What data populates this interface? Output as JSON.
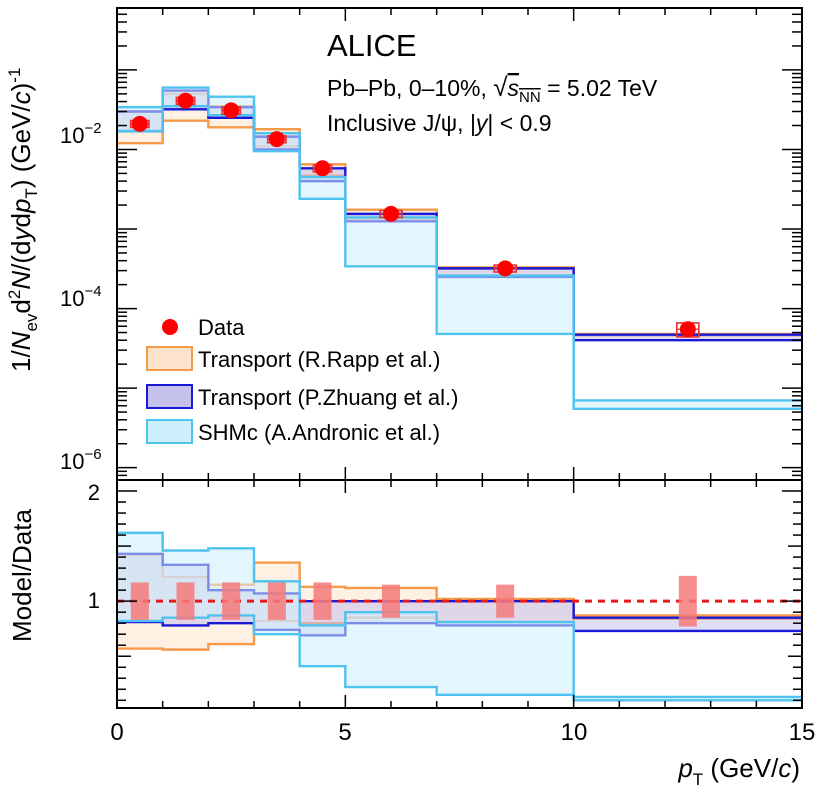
{
  "chart_data": {
    "type": "histogram",
    "title": "ALICE",
    "annotations": {
      "system": "Pb–Pb, 0–10%, ",
      "energy": "= 5.02 TeV",
      "selection_prefix": "Inclusive J/ψ, |",
      "selection_var": "y",
      "selection_suffix": "| < 0.9"
    },
    "xlabel": "p_T (GeV/c)",
    "ylabel": "1/N_ev d²N/(dy dp_T) (GeV/c)^-1",
    "ratio_ylabel": "Model/Data",
    "xlim": [
      0,
      15
    ],
    "ylim_top": [
      7e-07,
      0.6
    ],
    "ylim_ratio": [
      0.03,
      2.1
    ],
    "x_ticks": [
      "0",
      "5",
      "10",
      "15"
    ],
    "y_ticks_top": [
      {
        "value": 0.01,
        "label": "10^-2"
      },
      {
        "value": 0.0001,
        "label": "10^-4"
      },
      {
        "value": 1e-06,
        "label": "10^-6"
      }
    ],
    "y_ticks_ratio": [
      "1",
      "2"
    ],
    "bin_edges": [
      0,
      1,
      2,
      3,
      4,
      5,
      7,
      10,
      15
    ],
    "data": {
      "name": "Data",
      "x": [
        0.5,
        1.5,
        2.5,
        3.5,
        4.5,
        6.0,
        8.5,
        12.5
      ],
      "y": [
        0.021,
        0.041,
        0.031,
        0.0135,
        0.0058,
        0.00155,
        0.00032,
        5.5e-05
      ],
      "sys_rel": [
        0.1,
        0.1,
        0.1,
        0.1,
        0.1,
        0.1,
        0.1,
        0.2
      ]
    },
    "series": [
      {
        "name": "Transport (R.Rapp et al.)",
        "color": "#f59a4a",
        "fill": "#fde3cc",
        "low": [
          0.012,
          0.023,
          0.019,
          0.011,
          0.0047,
          0.00132,
          0.00026,
          4.6e-05
        ],
        "high": [
          0.03,
          0.05,
          0.035,
          0.018,
          0.0065,
          0.00175,
          0.00033,
          4.8e-05
        ]
      },
      {
        "name": "Transport (P.Zhuang et al.)",
        "color": "#1a1ad6",
        "fill": "#c5c2ee",
        "low": [
          0.017,
          0.032,
          0.025,
          0.01,
          0.004,
          0.00125,
          0.00025,
          4e-05
        ],
        "high": [
          0.03,
          0.055,
          0.034,
          0.0145,
          0.0058,
          0.00155,
          0.00032,
          4.7e-05
        ]
      },
      {
        "name": "SHMc (A.Andronic et al.)",
        "color": "#4fc3f0",
        "fill": "#cdeefb",
        "low": [
          0.017,
          0.035,
          0.027,
          0.0095,
          0.0024,
          0.00034,
          4.8e-05,
          5.5e-06
        ],
        "high": [
          0.034,
          0.06,
          0.046,
          0.016,
          0.0045,
          0.0014,
          0.00026,
          7e-06
        ]
      }
    ],
    "ratio": {
      "data_sys": [
        {
          "low": 0.83,
          "high": 1.17
        },
        {
          "low": 0.83,
          "high": 1.17
        },
        {
          "low": 0.83,
          "high": 1.17
        },
        {
          "low": 0.83,
          "high": 1.17
        },
        {
          "low": 0.83,
          "high": 1.17
        },
        {
          "low": 0.85,
          "high": 1.15
        },
        {
          "low": 0.85,
          "high": 1.15
        },
        {
          "low": 0.77,
          "high": 1.23
        }
      ],
      "series": [
        {
          "name": "Transport (R.Rapp et al.)",
          "low": [
            0.57,
            0.56,
            0.61,
            0.82,
            0.8,
            0.85,
            0.81,
            0.84
          ],
          "high": [
            1.42,
            1.22,
            1.15,
            1.35,
            1.13,
            1.12,
            1.02,
            0.87
          ]
        },
        {
          "name": "Transport (P.Zhuang et al.)",
          "low": [
            0.81,
            0.78,
            0.8,
            0.74,
            0.69,
            0.8,
            0.78,
            0.73
          ],
          "high": [
            1.43,
            1.33,
            1.1,
            1.07,
            1.0,
            1.0,
            1.0,
            0.85
          ]
        },
        {
          "name": "SHMc (A.Andronic et al.)",
          "low": [
            0.82,
            0.85,
            0.87,
            0.7,
            0.41,
            0.22,
            0.15,
            0.1
          ],
          "high": [
            1.62,
            1.46,
            1.48,
            1.18,
            0.78,
            0.9,
            0.81,
            0.13
          ]
        }
      ]
    },
    "legend": [
      "Data",
      "Transport (R.Rapp et al.)",
      "Transport (P.Zhuang et al.)",
      "SHMc (A.Andronic et al.)"
    ],
    "colors": {
      "data": "#ff0000",
      "data_box": "#e83030",
      "ratio_box": "#f47a7a",
      "reference_line": "#e81a1a"
    }
  }
}
